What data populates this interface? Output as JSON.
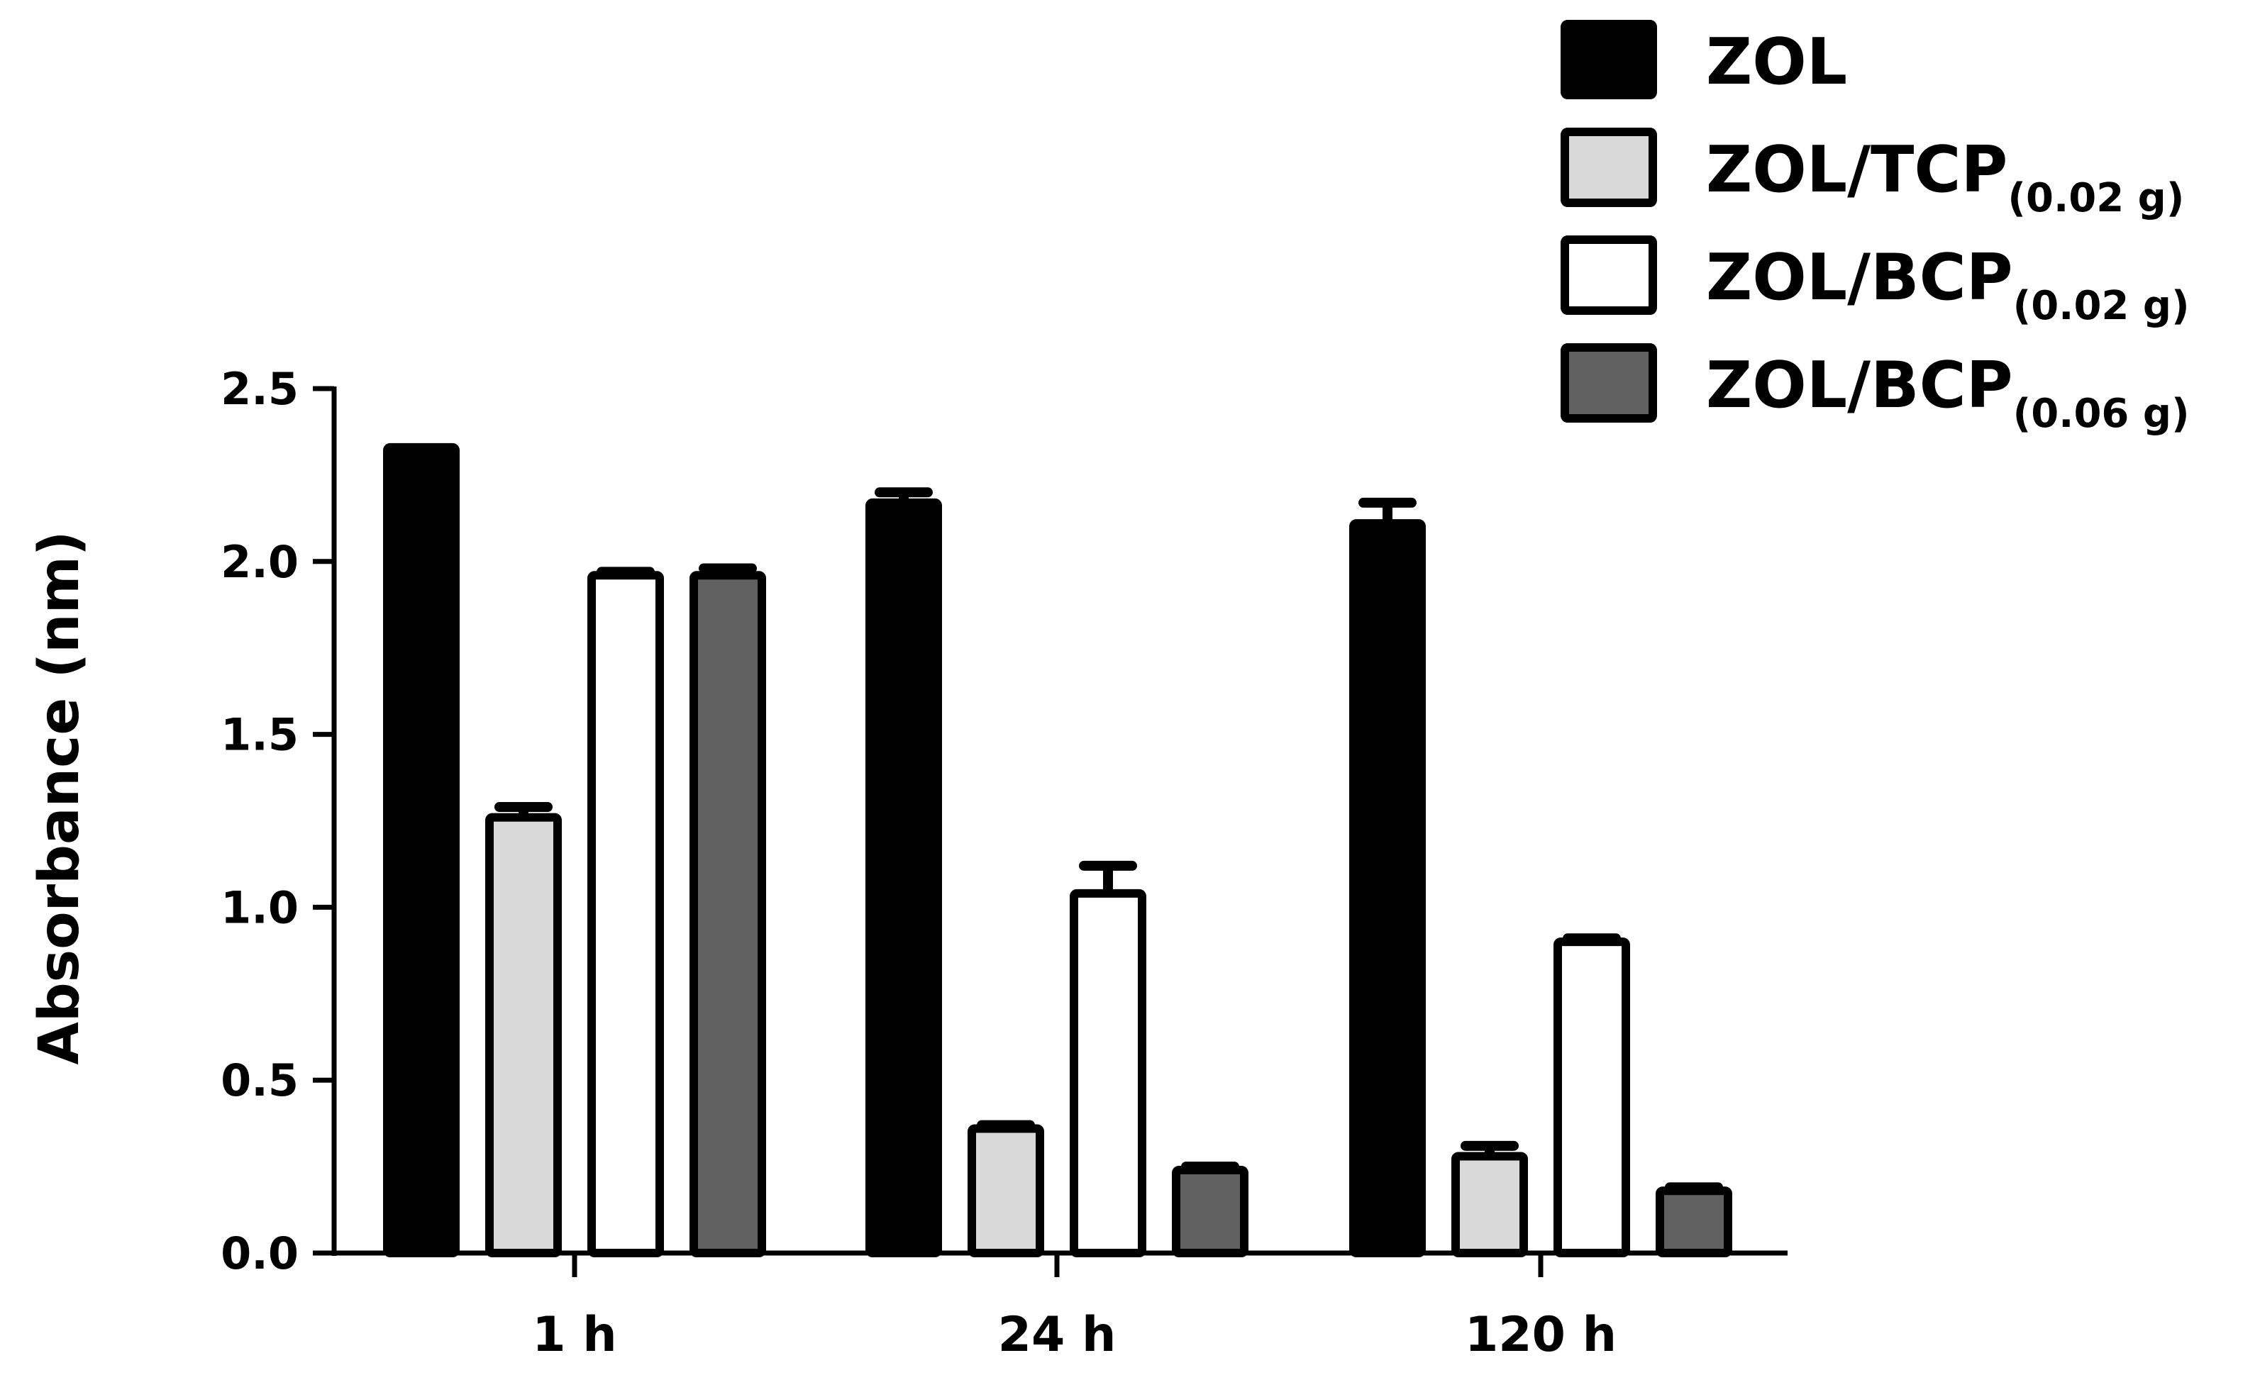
{
  "chart_data": {
    "type": "bar",
    "title": "",
    "xlabel": "",
    "ylabel": "Absorbance (nm)",
    "ylim": [
      0,
      2.5
    ],
    "yticks": [
      "0.0",
      "0.5",
      "1.0",
      "1.5",
      "2.0",
      "2.5"
    ],
    "categories": [
      "1 h",
      "24 h",
      "120 h"
    ],
    "grid": false,
    "legend_position": "top-right",
    "series": [
      {
        "name": "ZOL",
        "name_main": "ZOL",
        "name_sub": "",
        "fill": "#000000",
        "values": [
          2.33,
          2.17,
          2.11
        ],
        "errors": [
          0.0,
          0.03,
          0.06
        ]
      },
      {
        "name": "ZOL/TCP(0.02 g)",
        "name_main": "ZOL/TCP",
        "name_sub": "(0.02 g)",
        "fill": "#d9d9d9",
        "values": [
          1.26,
          0.36,
          0.28
        ],
        "errors": [
          0.03,
          0.01,
          0.03
        ]
      },
      {
        "name": "ZOL/BCP(0.02 g)",
        "name_main": "ZOL/BCP",
        "name_sub": "(0.02 g)",
        "fill": "#ffffff",
        "values": [
          1.96,
          1.04,
          0.9
        ],
        "errors": [
          0.01,
          0.08,
          0.01
        ]
      },
      {
        "name": "ZOL/BCP(0.06 g)",
        "name_main": "ZOL/BCP",
        "name_sub": "(0.06 g)",
        "fill": "#606060",
        "values": [
          1.96,
          0.24,
          0.18
        ],
        "errors": [
          0.02,
          0.01,
          0.01
        ]
      }
    ]
  }
}
